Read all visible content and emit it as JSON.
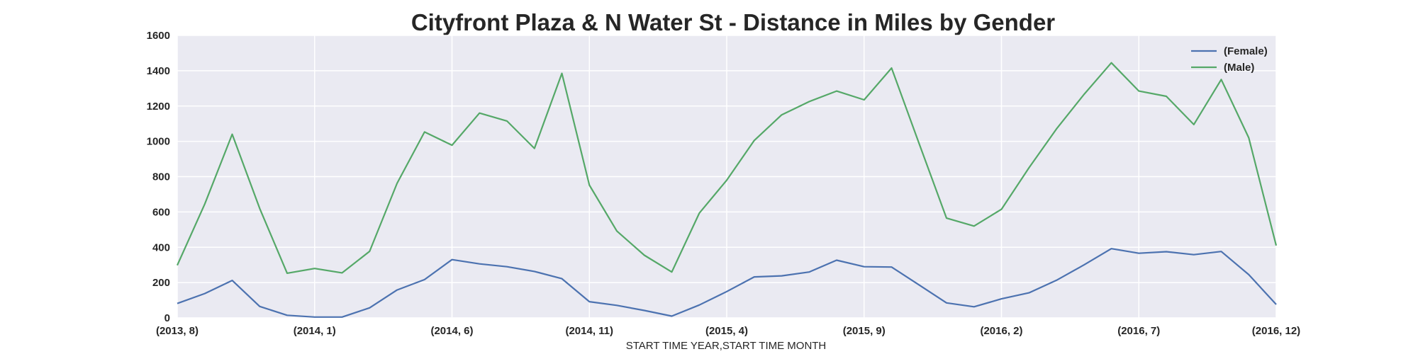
{
  "chart_data": {
    "type": "line",
    "title": "Cityfront Plaza & N Water St - Distance in Miles by Gender",
    "xlabel": "START TIME YEAR,START TIME MONTH",
    "ylabel": "",
    "ylim": [
      0,
      1600
    ],
    "yticks": [
      0,
      200,
      400,
      600,
      800,
      1000,
      1200,
      1400,
      1600
    ],
    "grid": true,
    "legend_position": "top-right",
    "background_color": "#eaeaf2",
    "x": [
      "(2013, 8)",
      "(2013, 9)",
      "(2013, 10)",
      "(2013, 11)",
      "(2013, 12)",
      "(2014, 1)",
      "(2014, 2)",
      "(2014, 3)",
      "(2014, 4)",
      "(2014, 5)",
      "(2014, 6)",
      "(2014, 7)",
      "(2014, 8)",
      "(2014, 9)",
      "(2014, 10)",
      "(2014, 11)",
      "(2014, 12)",
      "(2015, 1)",
      "(2015, 2)",
      "(2015, 3)",
      "(2015, 4)",
      "(2015, 5)",
      "(2015, 6)",
      "(2015, 7)",
      "(2015, 8)",
      "(2015, 9)",
      "(2015, 10)",
      "(2015, 11)",
      "(2015, 12)",
      "(2016, 1)",
      "(2016, 2)",
      "(2016, 3)",
      "(2016, 4)",
      "(2016, 5)",
      "(2016, 6)",
      "(2016, 7)",
      "(2016, 8)",
      "(2016, 9)",
      "(2016, 10)",
      "(2016, 11)",
      "(2016, 12)"
    ],
    "x_tick_labels": [
      "(2013, 8)",
      "(2014, 1)",
      "(2014, 6)",
      "(2014, 11)",
      "(2015, 4)",
      "(2015, 9)",
      "(2016, 2)",
      "(2016, 7)",
      "(2016, 12)"
    ],
    "x_tick_indices": [
      0,
      5,
      10,
      15,
      20,
      25,
      30,
      35,
      40
    ],
    "series": [
      {
        "name": "(Female)",
        "color": "#4c72b0",
        "values": [
          82,
          138,
          212,
          65,
          15,
          5,
          5,
          57,
          158,
          217,
          330,
          306,
          290,
          263,
          222,
          92,
          71,
          42,
          10,
          73,
          149,
          232,
          238,
          260,
          327,
          290,
          288,
          187,
          85,
          63,
          108,
          142,
          213,
          300,
          392,
          366,
          375,
          358,
          376,
          245,
          76
        ]
      },
      {
        "name": "(Male)",
        "color": "#55a868",
        "values": [
          298,
          645,
          1040,
          620,
          253,
          280,
          255,
          377,
          762,
          1053,
          978,
          1160,
          1115,
          960,
          1385,
          752,
          492,
          355,
          260,
          593,
          780,
          1005,
          1150,
          1225,
          1285,
          1235,
          1415,
          988,
          565,
          520,
          615,
          850,
          1070,
          1265,
          1445,
          1285,
          1255,
          1095,
          1350,
          1020,
          410
        ]
      }
    ]
  }
}
